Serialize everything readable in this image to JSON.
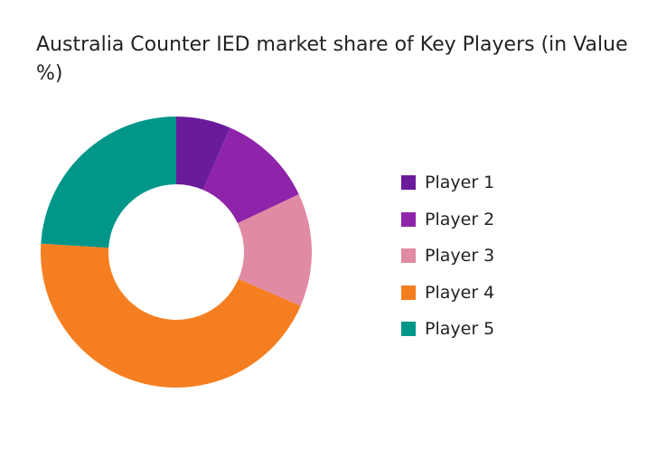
{
  "chart_data": {
    "type": "pie",
    "subtype": "donut",
    "title": "Australia Counter IED market share of Key Players (in Value %)",
    "xlabel": "",
    "ylabel": "",
    "categories": [
      "Player 1",
      "Player 2",
      "Player 3",
      "Player 4",
      "Player 5"
    ],
    "values": [
      6.5,
      11.5,
      13.5,
      44.5,
      24
    ],
    "unit": "%",
    "colors": [
      "#6a1b9a",
      "#8e24aa",
      "#e08ba3",
      "#f57f20",
      "#00968a"
    ],
    "legend_position": "right",
    "start_angle_deg": 0,
    "direction": "clockwise"
  }
}
